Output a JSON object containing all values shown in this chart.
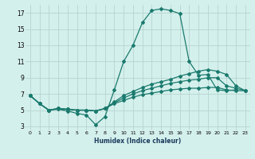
{
  "title": "",
  "xlabel": "Humidex (Indice chaleur)",
  "background_color": "#d4f0ec",
  "grid_color": "#b8d4d0",
  "line_color": "#1a7a6e",
  "xlim": [
    -0.5,
    23.5
  ],
  "ylim": [
    2.5,
    18.0
  ],
  "yticks": [
    3,
    5,
    7,
    9,
    11,
    13,
    15,
    17
  ],
  "xticks": [
    0,
    1,
    2,
    3,
    4,
    5,
    6,
    7,
    8,
    9,
    10,
    11,
    12,
    13,
    14,
    15,
    16,
    17,
    18,
    19,
    20,
    21,
    22,
    23
  ],
  "series": [
    {
      "x": [
        0,
        1,
        2,
        3,
        4,
        5,
        6,
        7,
        8,
        9,
        10,
        11,
        12,
        13,
        14,
        15,
        16,
        17,
        18,
        19,
        20,
        21,
        22
      ],
      "y": [
        6.8,
        5.8,
        5.0,
        5.1,
        4.9,
        4.6,
        4.4,
        3.2,
        4.2,
        7.5,
        11.0,
        13.0,
        15.8,
        17.3,
        17.5,
        17.3,
        16.9,
        11.0,
        9.3,
        9.4,
        7.5,
        7.4,
        7.5
      ],
      "markersize": 2.0,
      "linewidth": 0.9
    },
    {
      "x": [
        0,
        1,
        2,
        3,
        4,
        5,
        6,
        7,
        8,
        9,
        10,
        11,
        12,
        13,
        14,
        15,
        16,
        17,
        18,
        19,
        20,
        21,
        22,
        23
      ],
      "y": [
        6.8,
        5.8,
        5.0,
        5.2,
        5.1,
        5.0,
        5.0,
        4.9,
        5.2,
        6.0,
        6.8,
        7.3,
        7.8,
        8.2,
        8.5,
        8.8,
        9.2,
        9.5,
        9.8,
        10.0,
        9.8,
        9.4,
        8.0,
        7.4
      ],
      "markersize": 2.0,
      "linewidth": 0.9
    },
    {
      "x": [
        0,
        1,
        2,
        3,
        4,
        5,
        6,
        7,
        8,
        9,
        10,
        11,
        12,
        13,
        14,
        15,
        16,
        17,
        18,
        19,
        20,
        21,
        22,
        23
      ],
      "y": [
        6.8,
        5.8,
        5.0,
        5.2,
        5.1,
        5.0,
        5.0,
        4.9,
        5.2,
        5.9,
        6.5,
        7.0,
        7.4,
        7.7,
        8.0,
        8.3,
        8.5,
        8.7,
        8.8,
        9.0,
        9.0,
        8.0,
        7.7,
        7.4
      ],
      "markersize": 2.0,
      "linewidth": 0.9
    },
    {
      "x": [
        0,
        1,
        2,
        3,
        4,
        5,
        6,
        7,
        8,
        9,
        10,
        11,
        12,
        13,
        14,
        15,
        16,
        17,
        18,
        19,
        20,
        21,
        22,
        23
      ],
      "y": [
        6.8,
        5.8,
        5.0,
        5.2,
        5.1,
        5.0,
        5.0,
        4.9,
        5.2,
        5.8,
        6.2,
        6.6,
        6.9,
        7.1,
        7.3,
        7.5,
        7.6,
        7.7,
        7.7,
        7.8,
        7.8,
        7.5,
        7.4,
        7.4
      ],
      "markersize": 2.0,
      "linewidth": 0.9
    }
  ]
}
